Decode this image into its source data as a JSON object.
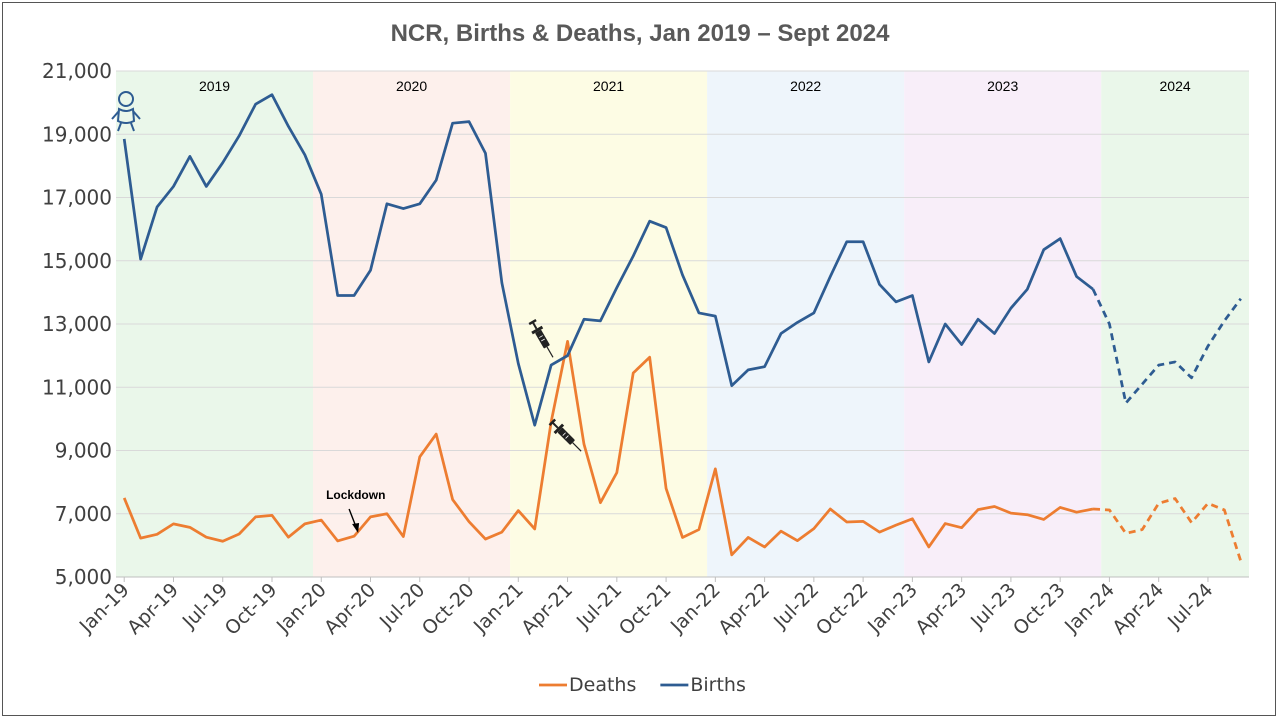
{
  "chart_data": {
    "type": "line",
    "title": "NCR, Births & Deaths, Jan 2019 – Sept 2024",
    "xlabel": "",
    "ylabel": "",
    "ylim": [
      5000,
      21000
    ],
    "yticks": [
      "5,000",
      "7,000",
      "9,000",
      "11,000",
      "13,000",
      "15,000",
      "17,000",
      "19,000",
      "21,000"
    ],
    "ytick_values": [
      5000,
      7000,
      9000,
      11000,
      13000,
      15000,
      17000,
      19000,
      21000
    ],
    "x": [
      "Jan-19",
      "Feb-19",
      "Mar-19",
      "Apr-19",
      "May-19",
      "Jun-19",
      "Jul-19",
      "Aug-19",
      "Sep-19",
      "Oct-19",
      "Nov-19",
      "Dec-19",
      "Jan-20",
      "Feb-20",
      "Mar-20",
      "Apr-20",
      "May-20",
      "Jun-20",
      "Jul-20",
      "Aug-20",
      "Sep-20",
      "Oct-20",
      "Nov-20",
      "Dec-20",
      "Jan-21",
      "Feb-21",
      "Mar-21",
      "Apr-21",
      "May-21",
      "Jun-21",
      "Jul-21",
      "Aug-21",
      "Sep-21",
      "Oct-21",
      "Nov-21",
      "Dec-21",
      "Jan-22",
      "Feb-22",
      "Mar-22",
      "Apr-22",
      "May-22",
      "Jun-22",
      "Jul-22",
      "Aug-22",
      "Sep-22",
      "Oct-22",
      "Nov-22",
      "Dec-22",
      "Jan-23",
      "Feb-23",
      "Mar-23",
      "Apr-23",
      "May-23",
      "Jun-23",
      "Jul-23",
      "Aug-23",
      "Sep-23",
      "Oct-23",
      "Nov-23",
      "Dec-23",
      "Jan-24",
      "Feb-24",
      "Mar-24",
      "Apr-24",
      "May-24",
      "Jun-24",
      "Jul-24",
      "Aug-24",
      "Sep-24"
    ],
    "xtick_every": 3,
    "grid": true,
    "legend_position": "bottom",
    "bands": [
      {
        "label": "2019",
        "start": 0,
        "months": 12,
        "color": "#eaf7ea"
      },
      {
        "label": "2020",
        "start": 12,
        "months": 12,
        "color": "#fdf0ec"
      },
      {
        "label": "2021",
        "start": 24,
        "months": 12,
        "color": "#fdfce4"
      },
      {
        "label": "2022",
        "start": 36,
        "months": 12,
        "color": "#eef5fb"
      },
      {
        "label": "2023",
        "start": 48,
        "months": 12,
        "color": "#f8eef9"
      },
      {
        "label": "2024",
        "start": 60,
        "months": 9,
        "color": "#eaf7ea"
      }
    ],
    "series": [
      {
        "name": "Deaths",
        "color": "#ed7d31",
        "dashed_from_index": 59,
        "values": [
          7500,
          6230,
          6350,
          6680,
          6570,
          6260,
          6130,
          6360,
          6900,
          6950,
          6260,
          6680,
          6800,
          6140,
          6290,
          6900,
          7000,
          6280,
          8800,
          9520,
          7450,
          6750,
          6200,
          6420,
          7100,
          6520,
          9900,
          12450,
          9200,
          7350,
          8300,
          11450,
          11950,
          7800,
          6250,
          6500,
          8420,
          5700,
          6250,
          5950,
          6450,
          6150,
          6530,
          7150,
          6740,
          6760,
          6420,
          6640,
          6840,
          5950,
          6690,
          6560,
          7130,
          7230,
          7020,
          6970,
          6820,
          7200,
          7050,
          7150,
          7120,
          6380,
          6500,
          7330,
          7480,
          6720,
          7330,
          7120,
          5500
        ]
      },
      {
        "name": "Births",
        "color": "#2e5c92",
        "dashed_from_index": 59,
        "values": [
          18850,
          15050,
          16700,
          17350,
          18300,
          17350,
          18100,
          18950,
          19950,
          20250,
          19250,
          18350,
          17100,
          13900,
          13900,
          14700,
          16800,
          16650,
          16800,
          17550,
          19350,
          19400,
          18400,
          14300,
          11750,
          9800,
          11700,
          12000,
          13150,
          13100,
          14150,
          15150,
          16250,
          16050,
          14550,
          13350,
          13250,
          11050,
          11550,
          11650,
          12700,
          13050,
          13350,
          14500,
          15600,
          15600,
          14250,
          13700,
          13900,
          11800,
          13000,
          12350,
          13150,
          12700,
          13500,
          14100,
          15350,
          15700,
          14500,
          14100,
          13000,
          10500,
          11100,
          11700,
          11800,
          11300,
          12300,
          13100,
          13800
        ]
      }
    ],
    "annotations": [
      {
        "text": "Lockdown",
        "index": 14
      }
    ]
  },
  "icons": {
    "baby": "baby-icon",
    "syringe": "syringe-icon"
  }
}
